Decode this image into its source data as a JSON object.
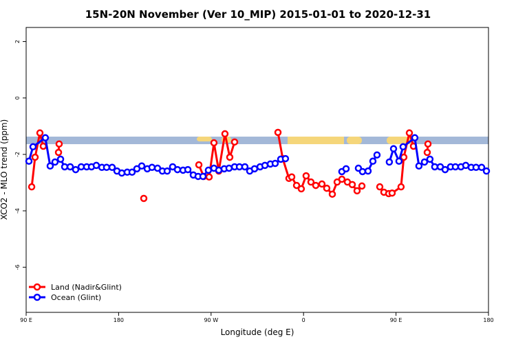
{
  "chart_data": {
    "type": "line",
    "title": "15N-20N November (Ver 10_MIP)   2015-01-01 to 2020-12-31",
    "x_label": "Longitude (deg E)",
    "y_label": "XCO2 - MLO trend (ppm)",
    "xlim": [
      90,
      540
    ],
    "ylim": [
      -7.6,
      2.5
    ],
    "xticks": [
      {
        "value": 90,
        "label": "90 E"
      },
      180,
      {
        "value": 270,
        "label": "90 W"
      },
      {
        "value": 360,
        "label": "0"
      },
      {
        "value": 450,
        "label": "90 E"
      },
      {
        "value": 540,
        "label": "180"
      }
    ],
    "yticks": [
      -6,
      -4,
      -2,
      0,
      2
    ],
    "legend": "bottom-left",
    "series": [
      {
        "name": "Land (Nadir&Glint)",
        "color": "#ff0000",
        "x": [
          95.4,
          98.7,
          103.4,
          106.7,
          114,
          121.5,
          122.1,
          150,
          204.5,
          240,
          258.1,
          262.8,
          268.1,
          272.8,
          277.5,
          283.5,
          288.2,
          292.9,
          320,
          335.1,
          339.8,
          345.8,
          348.5,
          353.2,
          357.8,
          362.5,
          367.2,
          371.9,
          377.9,
          382.6,
          388.0,
          392.7,
          397.3,
          402.7,
          407.4,
          412.1,
          416.8,
          425,
          434.2,
          438.2,
          442.9,
          446.2,
          454.9,
          457.6,
          463.0,
          467.0,
          474,
          480.4,
          481.1
        ],
        "values": [
          -3.15,
          -2.1,
          -1.24,
          -1.71,
          null,
          -1.93,
          -1.63,
          null,
          -3.56,
          null,
          -2.37,
          -2.78,
          -2.8,
          -1.59,
          -2.59,
          -1.27,
          -2.1,
          -1.56,
          null,
          -1.22,
          -2.15,
          -2.85,
          -2.8,
          -3.1,
          -3.22,
          -2.76,
          -2.98,
          -3.1,
          -3.05,
          -3.2,
          -3.41,
          -2.98,
          -2.88,
          -2.98,
          -3.07,
          -3.29,
          -3.12,
          null,
          -3.15,
          -3.34,
          -3.39,
          -3.37,
          -3.15,
          -2.1,
          -1.24,
          -1.71,
          null,
          -1.93,
          -1.63
        ]
      },
      {
        "name": "Ocean (Glint)",
        "color": "#0000ff",
        "x": [
          92.7,
          96.7,
          108.7,
          113.4,
          118.1,
          123.5,
          127.5,
          132.9,
          138.2,
          143.6,
          148.9,
          153.6,
          158.3,
          163.7,
          168.3,
          173.7,
          178.4,
          183.1,
          188.4,
          193.1,
          197.8,
          202.5,
          207.9,
          212.5,
          217.9,
          222.6,
          227.3,
          232.6,
          237.3,
          242.7,
          247.4,
          252.7,
          257.4,
          262.1,
          267.4,
          272.8,
          277.5,
          282.8,
          287.5,
          292.9,
          297.6,
          302.9,
          307.6,
          312.3,
          317.7,
          322.4,
          327.7,
          332.4,
          337.8,
          342.4,
          370,
          397.3,
          401.4,
          410,
          413.4,
          417.4,
          422.8,
          427.5,
          431.5,
          440,
          443.5,
          447.6,
          452.9,
          456.9,
          468.3,
          472.3,
          477.7,
          483.0,
          487.7,
          493.1,
          497.8,
          503.1,
          507.8,
          513.2,
          517.9,
          523.2,
          527.9,
          533.3,
          538.0
        ],
        "values": [
          -2.24,
          -1.73,
          -1.41,
          -2.41,
          -2.27,
          -2.17,
          -2.44,
          -2.44,
          -2.54,
          -2.44,
          -2.44,
          -2.44,
          -2.39,
          -2.46,
          -2.46,
          -2.46,
          -2.59,
          -2.66,
          -2.63,
          -2.63,
          -2.51,
          -2.41,
          -2.51,
          -2.46,
          -2.49,
          -2.59,
          -2.59,
          -2.44,
          -2.54,
          -2.56,
          -2.54,
          -2.73,
          -2.78,
          -2.78,
          -2.56,
          -2.49,
          -2.56,
          -2.51,
          -2.49,
          -2.44,
          -2.44,
          -2.44,
          -2.59,
          -2.51,
          -2.44,
          -2.39,
          -2.34,
          -2.32,
          -2.17,
          -2.15,
          null,
          -2.61,
          -2.51,
          null,
          -2.49,
          -2.61,
          -2.59,
          -2.24,
          -2.02,
          null,
          -2.27,
          -1.8,
          -2.24,
          -1.73,
          -1.41,
          -2.41,
          -2.27,
          -2.17,
          -2.44,
          -2.44,
          -2.54,
          -2.44,
          -2.44,
          -2.44,
          -2.39,
          -2.46,
          -2.46,
          -2.46,
          -2.59
        ]
      }
    ]
  }
}
